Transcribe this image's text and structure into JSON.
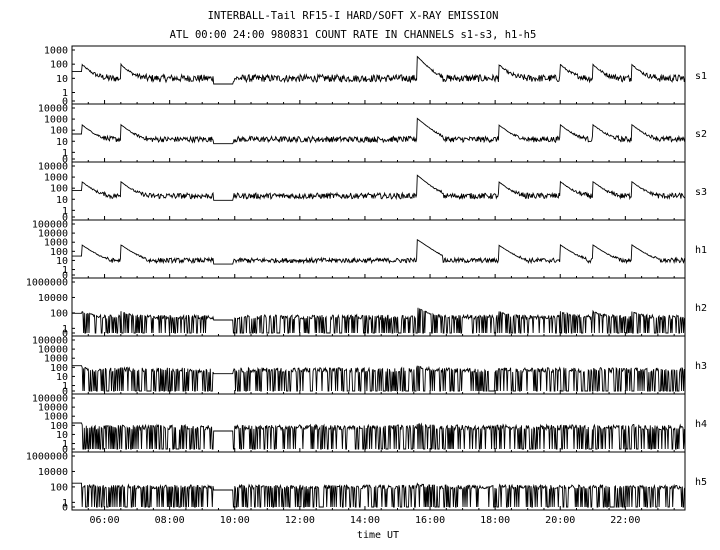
{
  "title_line1": "INTERBALL-Tail RF15-I HARD/SOFT X-RAY EMISSION",
  "title_line2": "ATL 00:00 24:00 980831  COUNT RATE IN CHANNELS s1-s3, h1-h5",
  "chart_data": {
    "type": "line",
    "title": "INTERBALL-Tail RF15-I HARD/SOFT X-RAY EMISSION",
    "subtitle": "ATL 00:00 24:00 980831  COUNT RATE IN CHANNELS s1-s3, h1-h5",
    "xlabel": "time UT",
    "x_range_hours": [
      5.0,
      23.833
    ],
    "x_ticks": [
      "06:00",
      "08:00",
      "10:00",
      "12:00",
      "14:00",
      "16:00",
      "18:00",
      "20:00",
      "22:00"
    ],
    "x_tick_hours": [
      6,
      8,
      10,
      12,
      14,
      16,
      18,
      20,
      22
    ],
    "grid": false,
    "y_scale": "log",
    "panels": [
      {
        "name": "s1",
        "ylim": [
          0,
          1000
        ],
        "yticks": [
          "1000",
          "100",
          "10",
          "1",
          "0"
        ],
        "base": 10,
        "burst": 350,
        "gap": [
          9.35,
          9.95
        ]
      },
      {
        "name": "s2",
        "ylim": [
          0,
          10000
        ],
        "yticks": [
          "10000",
          "1000",
          "100",
          "10",
          "1",
          "0"
        ],
        "base": 15,
        "burst": 1200,
        "gap": [
          9.35,
          9.95
        ]
      },
      {
        "name": "s3",
        "ylim": [
          0,
          10000
        ],
        "yticks": [
          "10000",
          "1000",
          "100",
          "10",
          "1",
          "0"
        ],
        "base": 20,
        "burst": 1500,
        "gap": [
          9.35,
          9.95
        ]
      },
      {
        "name": "h1",
        "ylim": [
          0,
          100000
        ],
        "yticks": [
          "100000",
          "10000",
          "1000",
          "100",
          "10",
          "1",
          "0"
        ],
        "base": 10,
        "burst": 2000,
        "gap": [
          9.35,
          9.95
        ]
      },
      {
        "name": "h2",
        "ylim": [
          0,
          1000000
        ],
        "yticks": [
          "1000000",
          "10000",
          "100",
          "1",
          "0"
        ],
        "base": 30,
        "burst": 500,
        "gap": [
          9.35,
          9.95
        ]
      },
      {
        "name": "h3",
        "ylim": [
          0,
          100000
        ],
        "yticks": [
          "100000",
          "10000",
          "1000",
          "100",
          "10",
          "1",
          "0"
        ],
        "base": 50,
        "burst": 100,
        "gap": [
          9.35,
          9.95
        ]
      },
      {
        "name": "h4",
        "ylim": [
          0,
          100000
        ],
        "yticks": [
          "100000",
          "10000",
          "1000",
          "100",
          "10",
          "1",
          "0"
        ],
        "base": 60,
        "burst": 100,
        "gap": [
          9.35,
          9.95
        ]
      },
      {
        "name": "h5",
        "ylim": [
          0,
          1000000
        ],
        "yticks": [
          "1000000",
          "10000",
          "100",
          "1",
          "0"
        ],
        "base": 100,
        "burst": 100,
        "gap": [
          9.35,
          9.95
        ]
      }
    ],
    "events_hours": [
      5.3,
      6.5,
      15.6,
      18.1,
      20.0,
      21.0,
      22.2
    ]
  }
}
